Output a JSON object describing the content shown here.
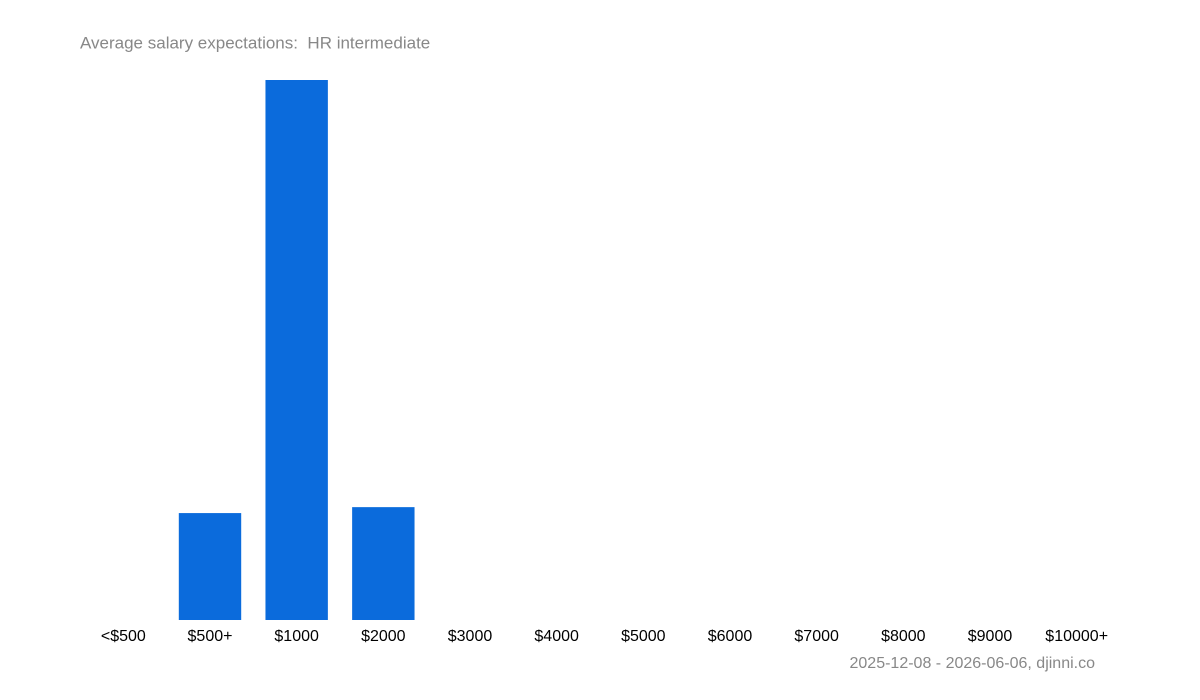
{
  "chart_data": {
    "type": "bar",
    "title": "Average salary expectations:  HR intermediate",
    "categories": [
      "<$500",
      "$500+",
      "$1000",
      "$2000",
      "$3000",
      "$4000",
      "$5000",
      "$6000",
      "$7000",
      "$8000",
      "$9000",
      "$10000+"
    ],
    "values": [
      0,
      19.8,
      100,
      20.9,
      0,
      0,
      0,
      0,
      0,
      0,
      0,
      0
    ],
    "color": "#0b6bdc",
    "ylim": [
      0,
      100
    ],
    "footnote": "2025-12-08 - 2026-06-06, djinni.co"
  }
}
